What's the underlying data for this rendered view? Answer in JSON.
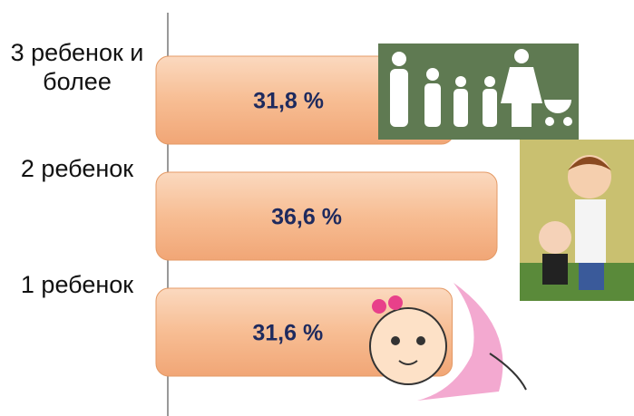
{
  "chart_data": {
    "type": "bar",
    "orientation": "horizontal",
    "categories": [
      "3 ребенок и более",
      "2 ребенок",
      "1 ребенок"
    ],
    "values": [
      31.8,
      36.6,
      31.6
    ],
    "value_labels": [
      "31,8 %",
      "36,6 %",
      "31,6 %"
    ],
    "color": "#f7bd93"
  }
}
